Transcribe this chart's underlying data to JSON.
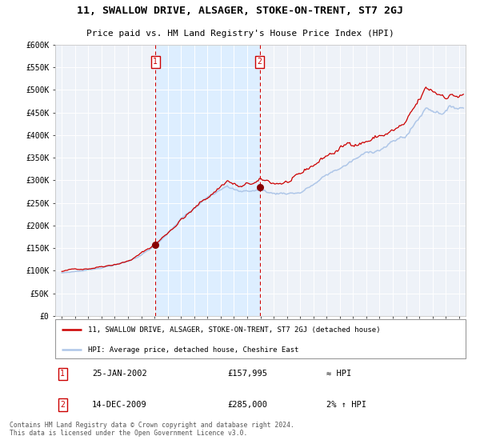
{
  "title": "11, SWALLOW DRIVE, ALSAGER, STOKE-ON-TRENT, ST7 2GJ",
  "subtitle": "Price paid vs. HM Land Registry's House Price Index (HPI)",
  "legend_line1": "11, SWALLOW DRIVE, ALSAGER, STOKE-ON-TRENT, ST7 2GJ (detached house)",
  "legend_line2": "HPI: Average price, detached house, Cheshire East",
  "annotation1_label": "1",
  "annotation1_date": "25-JAN-2002",
  "annotation1_price": "£157,995",
  "annotation1_hpi": "≈ HPI",
  "annotation2_label": "2",
  "annotation2_date": "14-DEC-2009",
  "annotation2_price": "£285,000",
  "annotation2_hpi": "2% ↑ HPI",
  "footer": "Contains HM Land Registry data © Crown copyright and database right 2024.\nThis data is licensed under the Open Government Licence v3.0.",
  "hpi_color": "#aec6e8",
  "price_color": "#cc0000",
  "point_color": "#880000",
  "vline_color": "#cc0000",
  "shade_color": "#ddeeff",
  "background_color": "#eef2f8",
  "grid_color": "#ffffff",
  "ylim": [
    0,
    600000
  ],
  "yticks": [
    0,
    50000,
    100000,
    150000,
    200000,
    250000,
    300000,
    350000,
    400000,
    450000,
    500000,
    550000,
    600000
  ],
  "sale1_x": 2002.07,
  "sale1_y": 157995,
  "sale2_x": 2009.95,
  "sale2_y": 285000,
  "xmin": 1994.5,
  "xmax": 2025.5,
  "xticks": [
    1995,
    1996,
    1997,
    1998,
    1999,
    2000,
    2001,
    2002,
    2003,
    2004,
    2005,
    2006,
    2007,
    2008,
    2009,
    2010,
    2011,
    2012,
    2013,
    2014,
    2015,
    2016,
    2017,
    2018,
    2019,
    2020,
    2021,
    2022,
    2023,
    2024,
    2025
  ]
}
